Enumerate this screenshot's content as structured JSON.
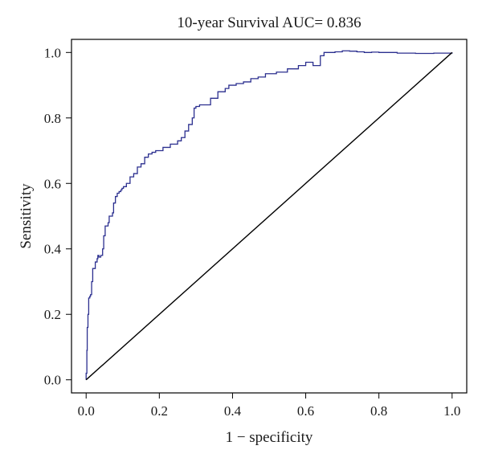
{
  "chart_data": {
    "type": "line",
    "title": "10-year Survival AUC= 0.836",
    "xlabel": "1 − specificity",
    "ylabel": "Sensitivity",
    "xlim": [
      -0.04,
      1.04
    ],
    "ylim": [
      -0.04,
      1.04
    ],
    "xticks": [
      0.0,
      0.2,
      0.4,
      0.6,
      0.8,
      1.0
    ],
    "yticks": [
      0.0,
      0.2,
      0.4,
      0.6,
      0.8,
      1.0
    ],
    "xtick_labels": [
      "0.0",
      "0.2",
      "0.4",
      "0.6",
      "0.8",
      "1.0"
    ],
    "ytick_labels": [
      "0.0",
      "0.2",
      "0.4",
      "0.6",
      "0.8",
      "1.0"
    ],
    "grid": false,
    "colors": {
      "roc": "#2b2f8f",
      "reference": "#000000",
      "frame": "#000000"
    },
    "series": [
      {
        "style": "step",
        "x": [
          0.0,
          0.0,
          0.002,
          0.003,
          0.005,
          0.007,
          0.01,
          0.012,
          0.015,
          0.018,
          0.025,
          0.03,
          0.032,
          0.035,
          0.04,
          0.045,
          0.048,
          0.052,
          0.06,
          0.063,
          0.068,
          0.072,
          0.075,
          0.08,
          0.085,
          0.09,
          0.095,
          0.098,
          0.102,
          0.11,
          0.12,
          0.13,
          0.14,
          0.15,
          0.16,
          0.17,
          0.18,
          0.19,
          0.2,
          0.21,
          0.23,
          0.25,
          0.26,
          0.27,
          0.28,
          0.29,
          0.295,
          0.3,
          0.31,
          0.32,
          0.34,
          0.36,
          0.38,
          0.39,
          0.41,
          0.43,
          0.45,
          0.47,
          0.49,
          0.52,
          0.55,
          0.58,
          0.6,
          0.62,
          0.64,
          0.65,
          0.66,
          0.68,
          0.7,
          0.72,
          0.74,
          0.76,
          0.78,
          0.8,
          0.85,
          0.9,
          0.95,
          1.0
        ],
        "y": [
          0.0,
          0.02,
          0.09,
          0.16,
          0.2,
          0.25,
          0.255,
          0.26,
          0.3,
          0.34,
          0.36,
          0.37,
          0.38,
          0.375,
          0.38,
          0.4,
          0.44,
          0.47,
          0.48,
          0.5,
          0.5,
          0.51,
          0.54,
          0.56,
          0.57,
          0.575,
          0.58,
          0.585,
          0.59,
          0.6,
          0.62,
          0.63,
          0.65,
          0.66,
          0.68,
          0.69,
          0.695,
          0.7,
          0.7,
          0.71,
          0.72,
          0.73,
          0.74,
          0.76,
          0.78,
          0.8,
          0.83,
          0.835,
          0.84,
          0.84,
          0.86,
          0.88,
          0.89,
          0.9,
          0.905,
          0.91,
          0.92,
          0.925,
          0.935,
          0.94,
          0.95,
          0.96,
          0.97,
          0.96,
          0.99,
          1.0,
          1.0,
          1.002,
          1.005,
          1.004,
          1.002,
          1.0,
          1.001,
          1.0,
          0.998,
          0.997,
          0.998,
          1.0
        ]
      },
      {
        "style": "line",
        "x": [
          0.0,
          1.0
        ],
        "y": [
          0.0,
          1.0
        ]
      }
    ]
  }
}
